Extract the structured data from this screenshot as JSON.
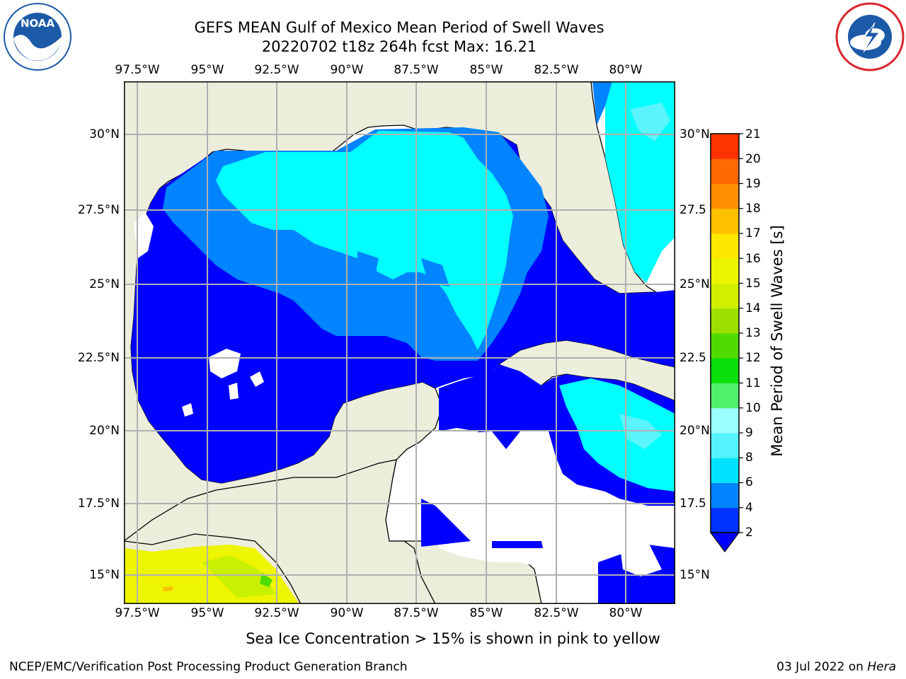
{
  "header": {
    "title_line1": "GEFS MEAN Gulf of Mexico Mean Period of Swell Waves",
    "title_line2": "20220702 t18z 264h fcst   Max: 16.21"
  },
  "logos": {
    "left": {
      "name": "NOAA",
      "ring_text": "NATIONAL OCEANIC AND ATMOSPHERIC ADMINISTRATION",
      "ring_text_bottom": "U.S. DEPARTMENT OF COMMERCE",
      "color": "#1b5aa6"
    },
    "right": {
      "ring_text": "NATIONAL WEATHER SERVICE",
      "color": "#d8262e"
    }
  },
  "map": {
    "lon_labels": [
      "97.5°W",
      "95°W",
      "92.5°W",
      "90°W",
      "87.5°W",
      "85°W",
      "82.5°W",
      "80°W"
    ],
    "lat_labels_left": [
      "30°N",
      "27.5°N",
      "25°N",
      "22.5°N",
      "20°N",
      "17.5°N",
      "15°N"
    ],
    "lat_labels_right": [
      "30°N",
      "27.5",
      "25°N",
      "22.5",
      "20°N",
      "17.5",
      "15°N"
    ],
    "colors": {
      "land": "#ededdc",
      "grid": "#b0b0b0",
      "coast": "#000000"
    }
  },
  "colorbar": {
    "label": "Mean Period of Swell Waves [s]",
    "ticks": [
      "2",
      "4",
      "6",
      "8",
      "9",
      "10",
      "11",
      "12",
      "13",
      "14",
      "15",
      "16",
      "17",
      "18",
      "19",
      "20",
      "21"
    ],
    "colors": [
      "#0033ff",
      "#0084ff",
      "#00e3ff",
      "#55f3ff",
      "#9cffff",
      "#50f06d",
      "#0be00b",
      "#50db00",
      "#9de000",
      "#d0f000",
      "#ecf500",
      "#ffe800",
      "#ffc000",
      "#ff8f00",
      "#ff6a00",
      "#ff3300",
      "#ff0000"
    ],
    "under_color": "#0000ff"
  },
  "shading": {
    "period_2_4": "#0000ff",
    "period_4_6": "#0084ff",
    "period_6_8": "#00ffff",
    "period_8_9": "#5af5ff",
    "period_9_10": "#6ff06d",
    "pacific_yellow": "#eef500",
    "pacific_green": "#c8f000"
  },
  "footer": {
    "note": "Sea Ice Concentration > 15% is shown in pink to yellow",
    "left": "NCEP/EMC/Verification Post Processing Product Generation Branch",
    "right_prefix": "03 Jul 2022 on ",
    "right_italic": "Hera"
  }
}
